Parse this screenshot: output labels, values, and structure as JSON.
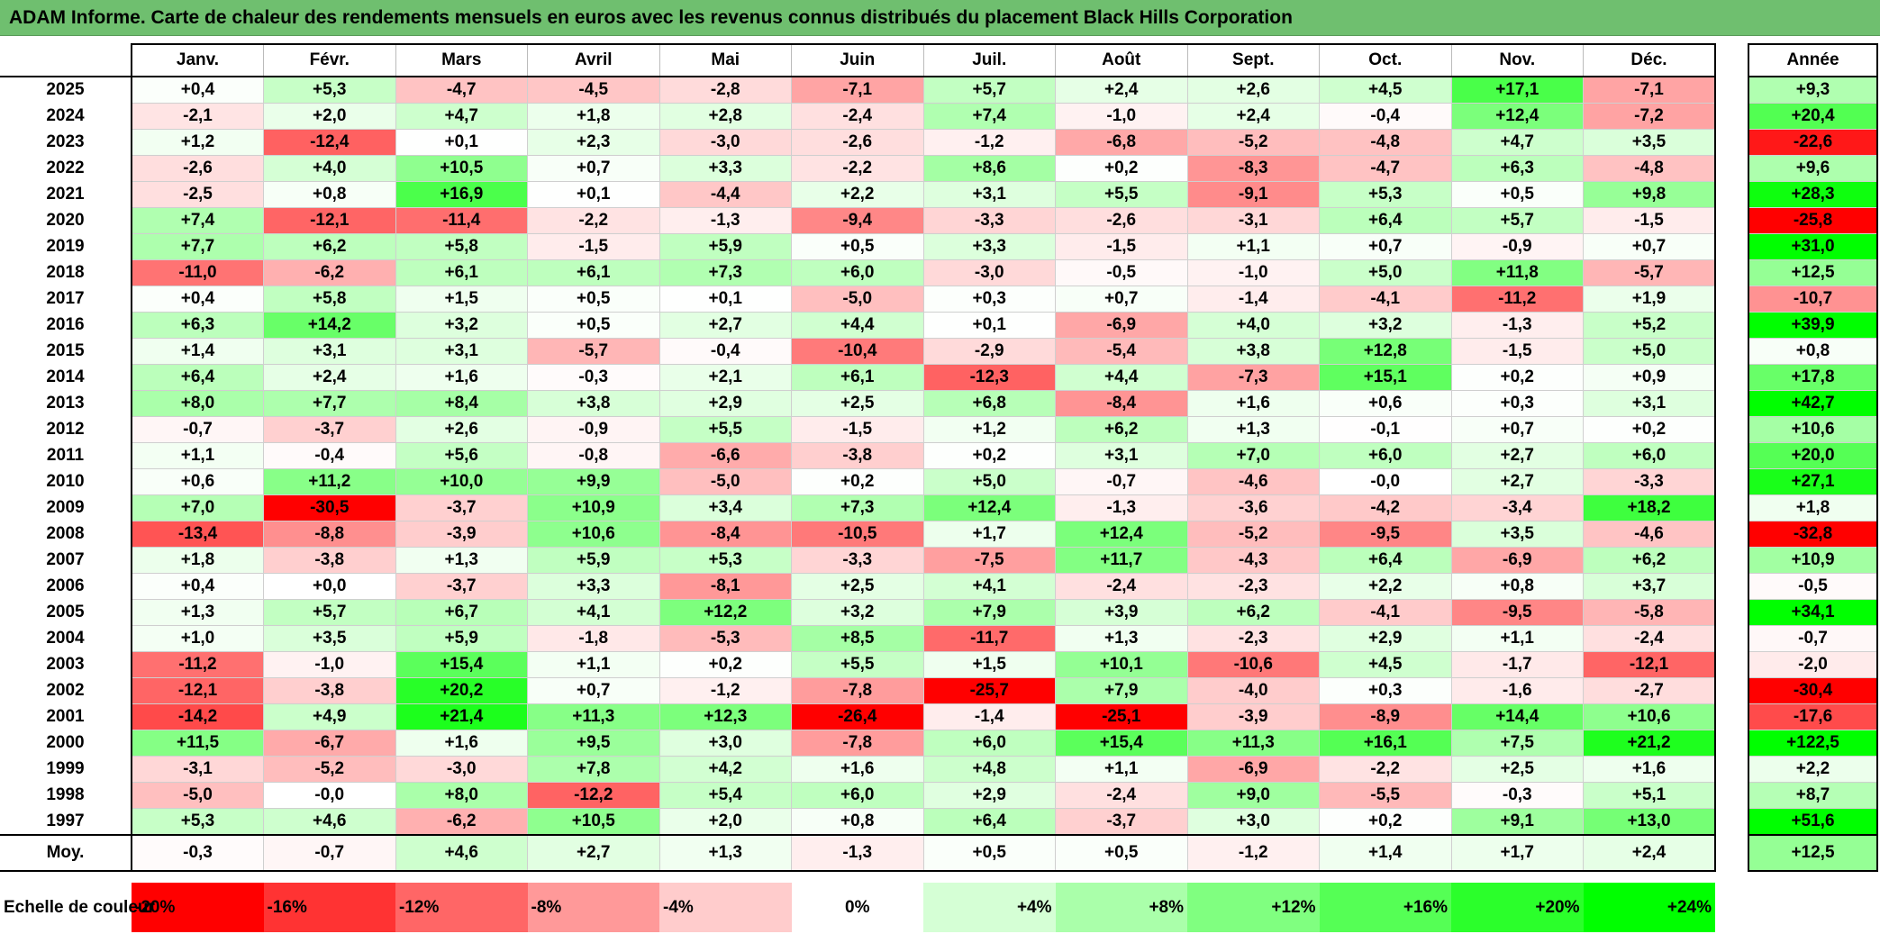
{
  "title": "ADAM Informe. Carte de chaleur des rendements mensuels en euros avec les revenus connus distribués du placement Black Hills Corporation",
  "chart_data": {
    "type": "heatmap",
    "title": "ADAM Informe. Carte de chaleur des rendements mensuels en euros avec les revenus connus distribués du placement Black Hills Corporation",
    "months": [
      "Janv.",
      "Févr.",
      "Mars",
      "Avril",
      "Mai",
      "Juin",
      "Juil.",
      "Août",
      "Sept.",
      "Oct.",
      "Nov.",
      "Déc."
    ],
    "annual_header": "Année",
    "rows": [
      {
        "year": "2025",
        "values": [
          "+0,4",
          "+5,3",
          "-4,7",
          "-4,5",
          "-2,8",
          "-7,1",
          "+5,7",
          "+2,4",
          "+2,6",
          "+4,5",
          "+17,1",
          "-7,1"
        ],
        "annual": "+9,3"
      },
      {
        "year": "2024",
        "values": [
          "-2,1",
          "+2,0",
          "+4,7",
          "+1,8",
          "+2,8",
          "-2,4",
          "+7,4",
          "-1,0",
          "+2,4",
          "-0,4",
          "+12,4",
          "-7,2"
        ],
        "annual": "+20,4"
      },
      {
        "year": "2023",
        "values": [
          "+1,2",
          "-12,4",
          "+0,1",
          "+2,3",
          "-3,0",
          "-2,6",
          "-1,2",
          "-6,8",
          "-5,2",
          "-4,8",
          "+4,7",
          "+3,5"
        ],
        "annual": "-22,6"
      },
      {
        "year": "2022",
        "values": [
          "-2,6",
          "+4,0",
          "+10,5",
          "+0,7",
          "+3,3",
          "-2,2",
          "+8,6",
          "+0,2",
          "-8,3",
          "-4,7",
          "+6,3",
          "-4,8"
        ],
        "annual": "+9,6"
      },
      {
        "year": "2021",
        "values": [
          "-2,5",
          "+0,8",
          "+16,9",
          "+0,1",
          "-4,4",
          "+2,2",
          "+3,1",
          "+5,5",
          "-9,1",
          "+5,3",
          "+0,5",
          "+9,8"
        ],
        "annual": "+28,3"
      },
      {
        "year": "2020",
        "values": [
          "+7,4",
          "-12,1",
          "-11,4",
          "-2,2",
          "-1,3",
          "-9,4",
          "-3,3",
          "-2,6",
          "-3,1",
          "+6,4",
          "+5,7",
          "-1,5"
        ],
        "annual": "-25,8"
      },
      {
        "year": "2019",
        "values": [
          "+7,7",
          "+6,2",
          "+5,8",
          "-1,5",
          "+5,9",
          "+0,5",
          "+3,3",
          "-1,5",
          "+1,1",
          "+0,7",
          "-0,9",
          "+0,7"
        ],
        "annual": "+31,0"
      },
      {
        "year": "2018",
        "values": [
          "-11,0",
          "-6,2",
          "+6,1",
          "+6,1",
          "+7,3",
          "+6,0",
          "-3,0",
          "-0,5",
          "-1,0",
          "+5,0",
          "+11,8",
          "-5,7"
        ],
        "annual": "+12,5"
      },
      {
        "year": "2017",
        "values": [
          "+0,4",
          "+5,8",
          "+1,5",
          "+0,5",
          "+0,1",
          "-5,0",
          "+0,3",
          "+0,7",
          "-1,4",
          "-4,1",
          "-11,2",
          "+1,9"
        ],
        "annual": "-10,7"
      },
      {
        "year": "2016",
        "values": [
          "+6,3",
          "+14,2",
          "+3,2",
          "+0,5",
          "+2,7",
          "+4,4",
          "+0,1",
          "-6,9",
          "+4,0",
          "+3,2",
          "-1,3",
          "+5,2"
        ],
        "annual": "+39,9"
      },
      {
        "year": "2015",
        "values": [
          "+1,4",
          "+3,1",
          "+3,1",
          "-5,7",
          "-0,4",
          "-10,4",
          "-2,9",
          "-5,4",
          "+3,8",
          "+12,8",
          "-1,5",
          "+5,0"
        ],
        "annual": "+0,8"
      },
      {
        "year": "2014",
        "values": [
          "+6,4",
          "+2,4",
          "+1,6",
          "-0,3",
          "+2,1",
          "+6,1",
          "-12,3",
          "+4,4",
          "-7,3",
          "+15,1",
          "+0,2",
          "+0,9"
        ],
        "annual": "+17,8"
      },
      {
        "year": "2013",
        "values": [
          "+8,0",
          "+7,7",
          "+8,4",
          "+3,8",
          "+2,9",
          "+2,5",
          "+6,8",
          "-8,4",
          "+1,6",
          "+0,6",
          "+0,3",
          "+3,1"
        ],
        "annual": "+42,7"
      },
      {
        "year": "2012",
        "values": [
          "-0,7",
          "-3,7",
          "+2,6",
          "-0,9",
          "+5,5",
          "-1,5",
          "+1,2",
          "+6,2",
          "+1,3",
          "-0,1",
          "+0,7",
          "+0,2"
        ],
        "annual": "+10,6"
      },
      {
        "year": "2011",
        "values": [
          "+1,1",
          "-0,4",
          "+5,6",
          "-0,8",
          "-6,6",
          "-3,8",
          "+0,2",
          "+3,1",
          "+7,0",
          "+6,0",
          "+2,7",
          "+6,0"
        ],
        "annual": "+20,0"
      },
      {
        "year": "2010",
        "values": [
          "+0,6",
          "+11,2",
          "+10,0",
          "+9,9",
          "-5,0",
          "+0,2",
          "+5,0",
          "-0,7",
          "-4,6",
          "-0,0",
          "+2,7",
          "-3,3"
        ],
        "annual": "+27,1"
      },
      {
        "year": "2009",
        "values": [
          "+7,0",
          "-30,5",
          "-3,7",
          "+10,9",
          "+3,4",
          "+7,3",
          "+12,4",
          "-1,3",
          "-3,6",
          "-4,2",
          "-3,4",
          "+18,2"
        ],
        "annual": "+1,8"
      },
      {
        "year": "2008",
        "values": [
          "-13,4",
          "-8,8",
          "-3,9",
          "+10,6",
          "-8,4",
          "-10,5",
          "+1,7",
          "+12,4",
          "-5,2",
          "-9,5",
          "+3,5",
          "-4,6"
        ],
        "annual": "-32,8"
      },
      {
        "year": "2007",
        "values": [
          "+1,8",
          "-3,8",
          "+1,3",
          "+5,9",
          "+5,3",
          "-3,3",
          "-7,5",
          "+11,7",
          "-4,3",
          "+6,4",
          "-6,9",
          "+6,2"
        ],
        "annual": "+10,9"
      },
      {
        "year": "2006",
        "values": [
          "+0,4",
          "+0,0",
          "-3,7",
          "+3,3",
          "-8,1",
          "+2,5",
          "+4,1",
          "-2,4",
          "-2,3",
          "+2,2",
          "+0,8",
          "+3,7"
        ],
        "annual": "-0,5"
      },
      {
        "year": "2005",
        "values": [
          "+1,3",
          "+5,7",
          "+6,7",
          "+4,1",
          "+12,2",
          "+3,2",
          "+7,9",
          "+3,9",
          "+6,2",
          "-4,1",
          "-9,5",
          "-5,8"
        ],
        "annual": "+34,1"
      },
      {
        "year": "2004",
        "values": [
          "+1,0",
          "+3,5",
          "+5,9",
          "-1,8",
          "-5,3",
          "+8,5",
          "-11,7",
          "+1,3",
          "-2,3",
          "+2,9",
          "+1,1",
          "-2,4"
        ],
        "annual": "-0,7"
      },
      {
        "year": "2003",
        "values": [
          "-11,2",
          "-1,0",
          "+15,4",
          "+1,1",
          "+0,2",
          "+5,5",
          "+1,5",
          "+10,1",
          "-10,6",
          "+4,5",
          "-1,7",
          "-12,1"
        ],
        "annual": "-2,0"
      },
      {
        "year": "2002",
        "values": [
          "-12,1",
          "-3,8",
          "+20,2",
          "+0,7",
          "-1,2",
          "-7,8",
          "-25,7",
          "+7,9",
          "-4,0",
          "+0,3",
          "-1,6",
          "-2,7"
        ],
        "annual": "-30,4"
      },
      {
        "year": "2001",
        "values": [
          "-14,2",
          "+4,9",
          "+21,4",
          "+11,3",
          "+12,3",
          "-26,4",
          "-1,4",
          "-25,1",
          "-3,9",
          "-8,9",
          "+14,4",
          "+10,6"
        ],
        "annual": "-17,6"
      },
      {
        "year": "2000",
        "values": [
          "+11,5",
          "-6,7",
          "+1,6",
          "+9,5",
          "+3,0",
          "-7,8",
          "+6,0",
          "+15,4",
          "+11,3",
          "+16,1",
          "+7,5",
          "+21,2"
        ],
        "annual": "+122,5"
      },
      {
        "year": "1999",
        "values": [
          "-3,1",
          "-5,2",
          "-3,0",
          "+7,8",
          "+4,2",
          "+1,6",
          "+4,8",
          "+1,1",
          "-6,9",
          "-2,2",
          "+2,5",
          "+1,6"
        ],
        "annual": "+2,2"
      },
      {
        "year": "1998",
        "values": [
          "-5,0",
          "-0,0",
          "+8,0",
          "-12,2",
          "+5,4",
          "+6,0",
          "+2,9",
          "-2,4",
          "+9,0",
          "-5,5",
          "-0,3",
          "+5,1"
        ],
        "annual": "+8,7"
      },
      {
        "year": "1997",
        "values": [
          "+5,3",
          "+4,6",
          "-6,2",
          "+10,5",
          "+2,0",
          "+0,8",
          "+6,4",
          "-3,7",
          "+3,0",
          "+0,2",
          "+9,1",
          "+13,0"
        ],
        "annual": "+51,6"
      }
    ],
    "average": {
      "label": "Moy.",
      "values": [
        "-0,3",
        "-0,7",
        "+4,6",
        "+2,7",
        "+1,3",
        "-1,3",
        "+0,5",
        "+0,5",
        "-1,2",
        "+1,4",
        "+1,7",
        "+2,4"
      ],
      "annual": "+12,5"
    },
    "color_scale": {
      "label": "Echelle de couleur",
      "steps": [
        {
          "label": "-20%",
          "value": -20
        },
        {
          "label": "-16%",
          "value": -16
        },
        {
          "label": "-12%",
          "value": -12
        },
        {
          "label": "-8%",
          "value": -8
        },
        {
          "label": "-4%",
          "value": -4
        },
        {
          "label": "0%",
          "value": 0
        },
        {
          "label": "+4%",
          "value": 4
        },
        {
          "label": "+8%",
          "value": 8
        },
        {
          "label": "+12%",
          "value": 12
        },
        {
          "label": "+16%",
          "value": 16
        },
        {
          "label": "+20%",
          "value": 20
        },
        {
          "label": "+24%",
          "value": 24
        }
      ]
    },
    "colors": {
      "negative_max": "#ff0000",
      "neutral": "#ffffff",
      "positive_max": "#00ff00"
    }
  }
}
